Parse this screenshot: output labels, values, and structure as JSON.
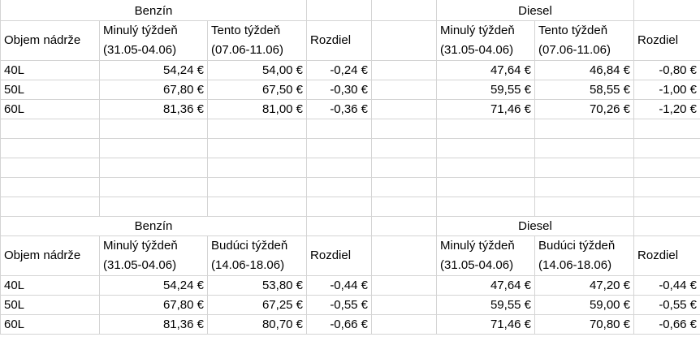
{
  "blocks": [
    {
      "benzin_title": "Benzín",
      "diesel_title": "Diesel",
      "headers": {
        "tank": "Objem nádrže",
        "prev_week": "Minulý týždeň",
        "prev_range": "(31.05-04.06)",
        "cur_week": "Tento týždeň",
        "cur_range": "(07.06-11.06)",
        "diff": "Rozdiel"
      },
      "rows": [
        {
          "tank": "40L",
          "benzin": [
            "54,24 €",
            "54,00 €",
            "-0,24 €"
          ],
          "diesel": [
            "47,64 €",
            "46,84 €",
            "-0,80 €"
          ]
        },
        {
          "tank": "50L",
          "benzin": [
            "67,80 €",
            "67,50 €",
            "-0,30 €"
          ],
          "diesel": [
            "59,55 €",
            "58,55 €",
            "-1,00 €"
          ]
        },
        {
          "tank": "60L",
          "benzin": [
            "81,36 €",
            "81,00 €",
            "-0,36 €"
          ],
          "diesel": [
            "71,46 €",
            "70,26 €",
            "-1,20 €"
          ]
        }
      ]
    },
    {
      "benzin_title": "Benzín",
      "diesel_title": "Diesel",
      "headers": {
        "tank": "Objem nádrže",
        "prev_week": "Minulý týždeň",
        "prev_range": "(31.05-04.06)",
        "cur_week": "Budúci týždeň",
        "cur_range": "(14.06-18.06)",
        "diff": "Rozdiel"
      },
      "rows": [
        {
          "tank": "40L",
          "benzin": [
            "54,24 €",
            "53,80 €",
            "-0,44 €"
          ],
          "diesel": [
            "47,64 €",
            "47,20 €",
            "-0,44 €"
          ]
        },
        {
          "tank": "50L",
          "benzin": [
            "67,80 €",
            "67,25 €",
            "-0,55 €"
          ],
          "diesel": [
            "59,55 €",
            "59,00 €",
            "-0,55 €"
          ]
        },
        {
          "tank": "60L",
          "benzin": [
            "81,36 €",
            "80,70 €",
            "-0,66 €"
          ],
          "diesel": [
            "71,46 €",
            "70,80 €",
            "-0,66 €"
          ]
        }
      ]
    }
  ]
}
